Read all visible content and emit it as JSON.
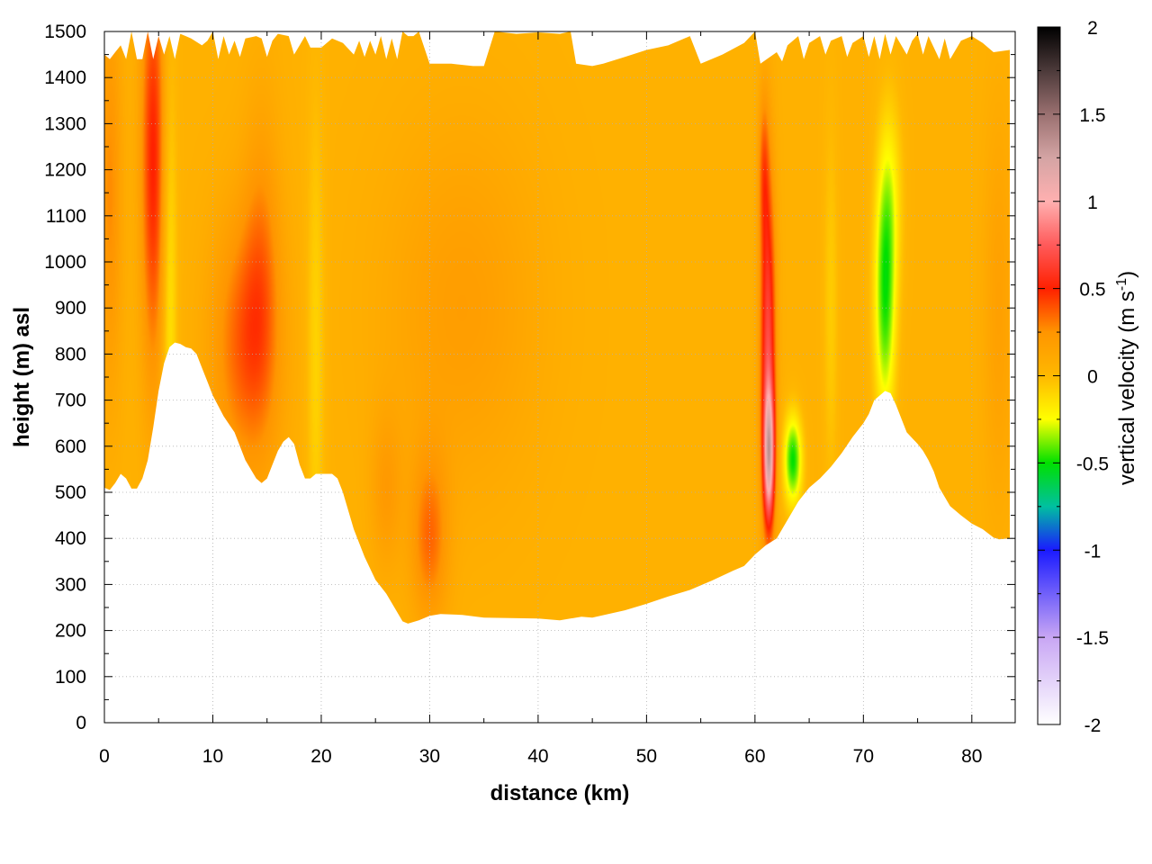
{
  "chart_data": {
    "type": "heatmap",
    "title": "",
    "xlabel": "distance (km)",
    "ylabel": "height (m) asl",
    "xlim": [
      0,
      84
    ],
    "ylim": [
      0,
      1500
    ],
    "x_ticks": [
      "0",
      "10",
      "20",
      "30",
      "40",
      "50",
      "60",
      "70",
      "80"
    ],
    "y_ticks": [
      "0",
      "100",
      "200",
      "300",
      "400",
      "500",
      "600",
      "700",
      "800",
      "900",
      "1000",
      "1100",
      "1200",
      "1300",
      "1400",
      "1500"
    ],
    "grid": true,
    "colorbar": {
      "label_main": "vertical velocity (m s",
      "label_sup": "-1",
      "label_close": ")",
      "range": [
        -2,
        2
      ],
      "ticks": [
        "-2",
        "-1.5",
        "-1",
        "-0.5",
        "0",
        "0.5",
        "1",
        "1.5",
        "2"
      ],
      "stops": [
        {
          "v": -2.0,
          "color": "#ffffff"
        },
        {
          "v": -1.5,
          "color": "#c8a6f4"
        },
        {
          "v": -1.0,
          "color": "#1a1aff"
        },
        {
          "v": -0.75,
          "color": "#00c0a0"
        },
        {
          "v": -0.5,
          "color": "#00e000"
        },
        {
          "v": -0.25,
          "color": "#ffff00"
        },
        {
          "v": 0.0,
          "color": "#ffb800"
        },
        {
          "v": 0.25,
          "color": "#ff9500"
        },
        {
          "v": 0.5,
          "color": "#ff2000"
        },
        {
          "v": 0.75,
          "color": "#ff5a5a"
        },
        {
          "v": 1.0,
          "color": "#ffb0b0"
        },
        {
          "v": 1.25,
          "color": "#d4a4a4"
        },
        {
          "v": 1.5,
          "color": "#9a7070"
        },
        {
          "v": 1.75,
          "color": "#4c3a3a"
        },
        {
          "v": 2.0,
          "color": "#000000"
        }
      ]
    },
    "background_value": 0.05,
    "terrain_bottom": [
      [
        0,
        510
      ],
      [
        0.5,
        505
      ],
      [
        1,
        520
      ],
      [
        1.5,
        540
      ],
      [
        2,
        530
      ],
      [
        2.5,
        508
      ],
      [
        3,
        508
      ],
      [
        3.5,
        530
      ],
      [
        4,
        570
      ],
      [
        4.5,
        640
      ],
      [
        5,
        720
      ],
      [
        5.5,
        780
      ],
      [
        6,
        815
      ],
      [
        6.5,
        825
      ],
      [
        7,
        822
      ],
      [
        7.5,
        815
      ],
      [
        8,
        812
      ],
      [
        8.5,
        800
      ],
      [
        9,
        770
      ],
      [
        9.5,
        740
      ],
      [
        10,
        710
      ],
      [
        11,
        665
      ],
      [
        12,
        630
      ],
      [
        13,
        570
      ],
      [
        14,
        530
      ],
      [
        14.5,
        520
      ],
      [
        15,
        530
      ],
      [
        15.5,
        560
      ],
      [
        16,
        590
      ],
      [
        16.5,
        610
      ],
      [
        17,
        620
      ],
      [
        17.5,
        605
      ],
      [
        18,
        560
      ],
      [
        18.5,
        530
      ],
      [
        19,
        530
      ],
      [
        19.5,
        540
      ],
      [
        21,
        540
      ],
      [
        21.5,
        530
      ],
      [
        22,
        500
      ],
      [
        23,
        420
      ],
      [
        24,
        360
      ],
      [
        25,
        310
      ],
      [
        26,
        280
      ],
      [
        27,
        240
      ],
      [
        27.5,
        220
      ],
      [
        28,
        215
      ],
      [
        29,
        222
      ],
      [
        30,
        232
      ],
      [
        31,
        236
      ],
      [
        33,
        234
      ],
      [
        35,
        228
      ],
      [
        40,
        226
      ],
      [
        42,
        222
      ],
      [
        44,
        230
      ],
      [
        45,
        228
      ],
      [
        48,
        244
      ],
      [
        50,
        258
      ],
      [
        52,
        274
      ],
      [
        54,
        288
      ],
      [
        56,
        308
      ],
      [
        58,
        330
      ],
      [
        59,
        340
      ],
      [
        60,
        365
      ],
      [
        61,
        385
      ],
      [
        62,
        400
      ],
      [
        63,
        440
      ],
      [
        64,
        480
      ],
      [
        65,
        510
      ],
      [
        66,
        530
      ],
      [
        67,
        555
      ],
      [
        68,
        585
      ],
      [
        69,
        620
      ],
      [
        70,
        650
      ],
      [
        70.5,
        670
      ],
      [
        71,
        700
      ],
      [
        71.5,
        710
      ],
      [
        72,
        720
      ],
      [
        72.5,
        715
      ],
      [
        73,
        690
      ],
      [
        73.5,
        660
      ],
      [
        74,
        630
      ],
      [
        75,
        605
      ],
      [
        75.5,
        590
      ],
      [
        76,
        570
      ],
      [
        76.5,
        545
      ],
      [
        77,
        510
      ],
      [
        77.5,
        490
      ],
      [
        78,
        470
      ],
      [
        79,
        450
      ],
      [
        80,
        432
      ],
      [
        81,
        420
      ],
      [
        82,
        402
      ],
      [
        82.5,
        398
      ],
      [
        83.5,
        400
      ]
    ],
    "domain_top": [
      [
        0,
        1450
      ],
      [
        0.5,
        1440
      ],
      [
        1,
        1455
      ],
      [
        1.5,
        1470
      ],
      [
        2,
        1440
      ],
      [
        2.5,
        1500
      ],
      [
        3,
        1440
      ],
      [
        3.5,
        1440
      ],
      [
        4,
        1500
      ],
      [
        4.5,
        1440
      ],
      [
        5,
        1490
      ],
      [
        5.5,
        1450
      ],
      [
        6,
        1490
      ],
      [
        6.5,
        1440
      ],
      [
        7,
        1495
      ],
      [
        7.5,
        1490
      ],
      [
        8,
        1485
      ],
      [
        9,
        1470
      ],
      [
        9.5,
        1480
      ],
      [
        10,
        1500
      ],
      [
        10.5,
        1440
      ],
      [
        11,
        1490
      ],
      [
        11.5,
        1450
      ],
      [
        12,
        1480
      ],
      [
        12.5,
        1445
      ],
      [
        13,
        1485
      ],
      [
        14,
        1490
      ],
      [
        14.5,
        1485
      ],
      [
        15,
        1445
      ],
      [
        15.5,
        1480
      ],
      [
        16,
        1495
      ],
      [
        17,
        1490
      ],
      [
        17.5,
        1450
      ],
      [
        18,
        1470
      ],
      [
        18.5,
        1490
      ],
      [
        19,
        1465
      ],
      [
        20,
        1465
      ],
      [
        21,
        1485
      ],
      [
        22,
        1475
      ],
      [
        23,
        1450
      ],
      [
        23.5,
        1480
      ],
      [
        24,
        1445
      ],
      [
        24.5,
        1480
      ],
      [
        25,
        1450
      ],
      [
        25.5,
        1490
      ],
      [
        26,
        1440
      ],
      [
        26.5,
        1485
      ],
      [
        27,
        1440
      ],
      [
        27.5,
        1500
      ],
      [
        28,
        1490
      ],
      [
        28.5,
        1490
      ],
      [
        29,
        1500
      ],
      [
        30,
        1430
      ],
      [
        32,
        1430
      ],
      [
        34,
        1425
      ],
      [
        35,
        1425
      ],
      [
        36,
        1500
      ],
      [
        38,
        1495
      ],
      [
        40,
        1498
      ],
      [
        42,
        1495
      ],
      [
        43,
        1500
      ],
      [
        43.5,
        1430
      ],
      [
        45,
        1425
      ],
      [
        46,
        1430
      ],
      [
        48,
        1445
      ],
      [
        50,
        1460
      ],
      [
        52,
        1470
      ],
      [
        54,
        1490
      ],
      [
        55,
        1430
      ],
      [
        57,
        1450
      ],
      [
        59,
        1475
      ],
      [
        60,
        1500
      ],
      [
        60.5,
        1430
      ],
      [
        62,
        1455
      ],
      [
        62.5,
        1435
      ],
      [
        63,
        1470
      ],
      [
        64,
        1490
      ],
      [
        64.5,
        1440
      ],
      [
        65,
        1475
      ],
      [
        66,
        1490
      ],
      [
        66.5,
        1450
      ],
      [
        67,
        1480
      ],
      [
        68,
        1490
      ],
      [
        68.5,
        1445
      ],
      [
        69,
        1475
      ],
      [
        70,
        1490
      ],
      [
        70.5,
        1445
      ],
      [
        71,
        1490
      ],
      [
        71.5,
        1440
      ],
      [
        72,
        1495
      ],
      [
        72.5,
        1450
      ],
      [
        73,
        1490
      ],
      [
        74,
        1450
      ],
      [
        74.5,
        1480
      ],
      [
        75,
        1495
      ],
      [
        75.5,
        1450
      ],
      [
        76,
        1490
      ],
      [
        77,
        1440
      ],
      [
        77.5,
        1485
      ],
      [
        78,
        1440
      ],
      [
        79,
        1480
      ],
      [
        80,
        1490
      ],
      [
        81,
        1475
      ],
      [
        82,
        1455
      ],
      [
        83.5,
        1460
      ]
    ],
    "features": [
      {
        "x": 4.5,
        "y": 1220,
        "sx": 0.8,
        "sy": 330,
        "v": 0.45
      },
      {
        "x": 13.0,
        "y": 820,
        "sx": 2.2,
        "sy": 200,
        "v": 0.32
      },
      {
        "x": 14.5,
        "y": 1000,
        "sx": 1.2,
        "sy": 250,
        "v": 0.18
      },
      {
        "x": 0.5,
        "y": 1150,
        "sx": 0.8,
        "sy": 300,
        "v": 0.22
      },
      {
        "x": 6.0,
        "y": 900,
        "sx": 0.5,
        "sy": 400,
        "v": -0.22
      },
      {
        "x": 19.5,
        "y": 800,
        "sx": 0.6,
        "sy": 400,
        "v": -0.15
      },
      {
        "x": 30.0,
        "y": 400,
        "sx": 1.2,
        "sy": 130,
        "v": 0.28
      },
      {
        "x": 26.0,
        "y": 500,
        "sx": 1.0,
        "sy": 120,
        "v": 0.15
      },
      {
        "x": 33.0,
        "y": 900,
        "sx": 5.0,
        "sy": 280,
        "v": 0.14
      },
      {
        "x": 61.2,
        "y": 820,
        "sx": 0.5,
        "sy": 260,
        "v": 0.62
      },
      {
        "x": 61.3,
        "y": 580,
        "sx": 0.35,
        "sy": 100,
        "v": 0.9
      },
      {
        "x": 60.8,
        "y": 1200,
        "sx": 0.35,
        "sy": 120,
        "v": 0.25
      },
      {
        "x": 63.5,
        "y": 570,
        "sx": 0.6,
        "sy": 70,
        "v": -0.55
      },
      {
        "x": 72.0,
        "y": 920,
        "sx": 0.7,
        "sy": 190,
        "v": -0.5
      },
      {
        "x": 72.5,
        "y": 1150,
        "sx": 0.8,
        "sy": 150,
        "v": -0.2
      },
      {
        "x": 67.0,
        "y": 900,
        "sx": 0.5,
        "sy": 300,
        "v": -0.12
      },
      {
        "x": 82.5,
        "y": 900,
        "sx": 1.0,
        "sy": 300,
        "v": 0.12
      }
    ]
  }
}
